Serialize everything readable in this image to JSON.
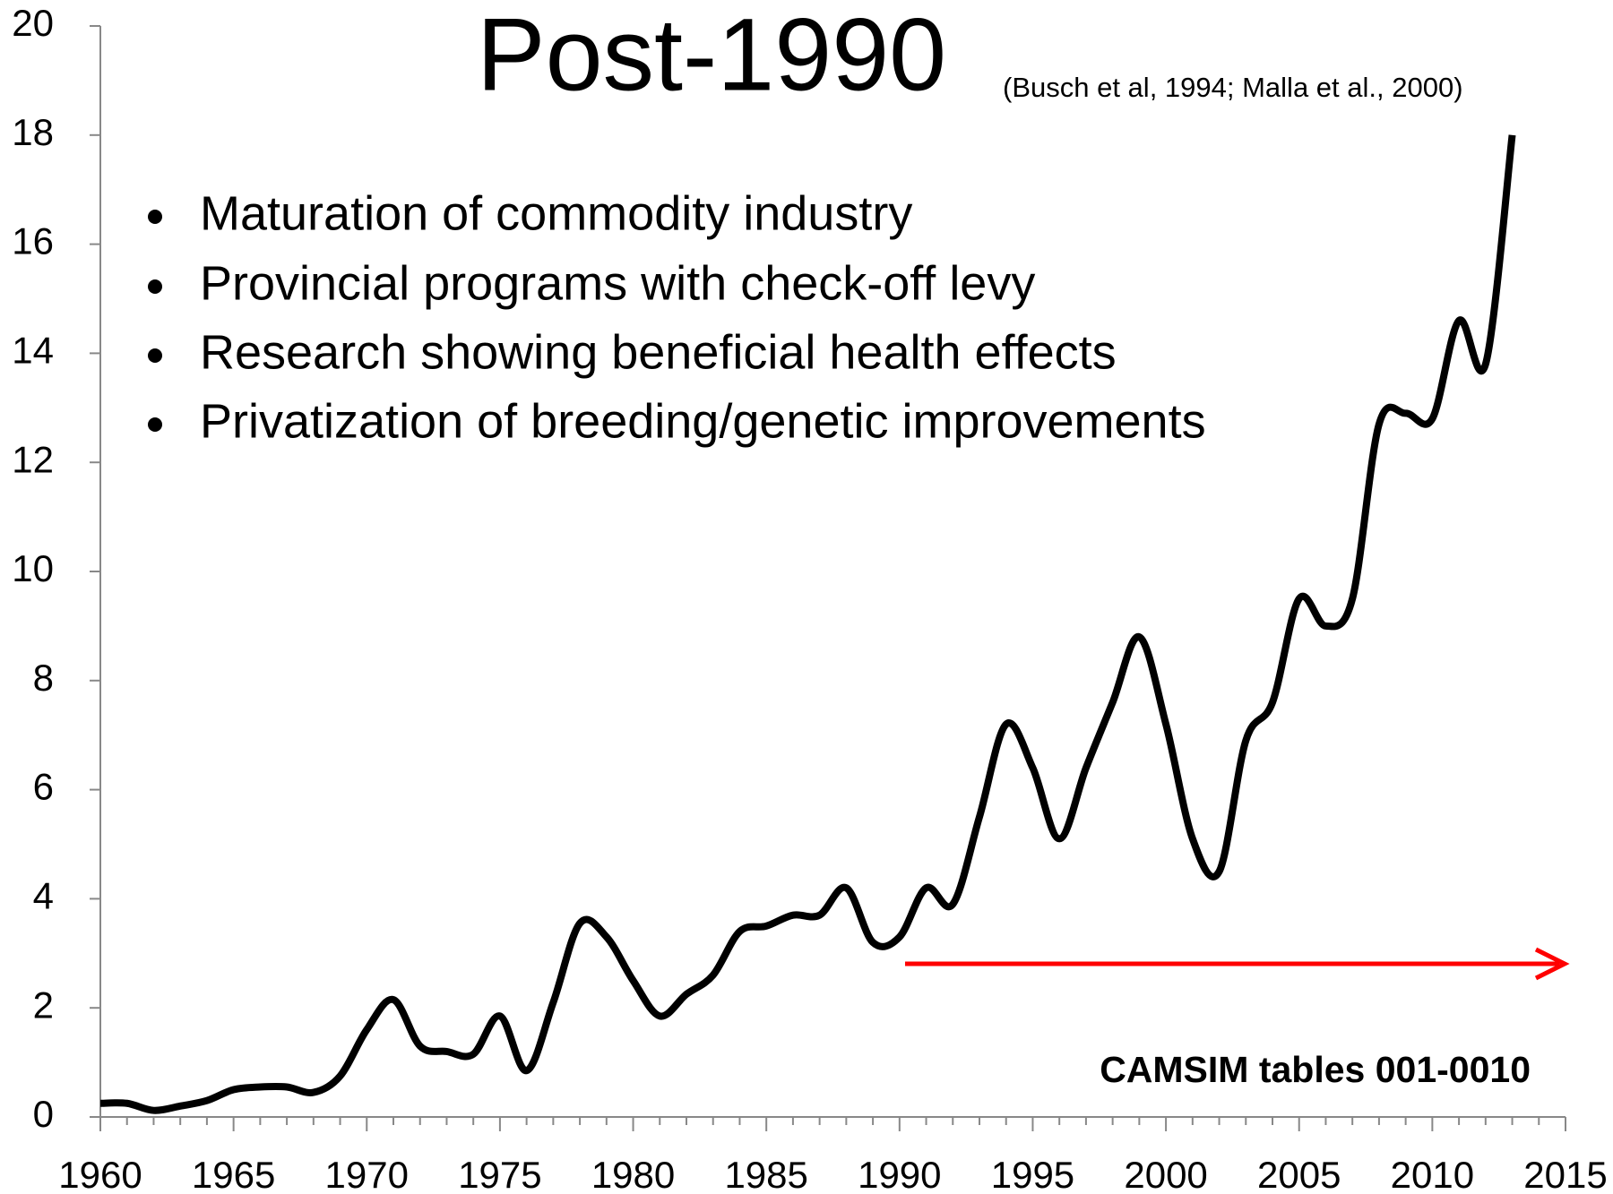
{
  "chart_data": {
    "type": "line",
    "title": "Post-1990",
    "subtitle": "(Busch et al, 1994; Malla et al., 2000)",
    "annotations": [
      "Maturation of commodity industry",
      "Provincial programs with check-off levy",
      "Research showing beneficial health effects",
      "Privatization of breeding/genetic improvements"
    ],
    "source": "CAMSIM tables 001-0010",
    "x": [
      1960,
      1961,
      1962,
      1963,
      1964,
      1965,
      1966,
      1967,
      1968,
      1969,
      1970,
      1971,
      1972,
      1973,
      1974,
      1975,
      1976,
      1977,
      1978,
      1979,
      1980,
      1981,
      1982,
      1983,
      1984,
      1985,
      1986,
      1987,
      1988,
      1989,
      1990,
      1991,
      1992,
      1993,
      1994,
      1995,
      1996,
      1997,
      1998,
      1999,
      2000,
      2001,
      2002,
      2003,
      2004,
      2005,
      2006,
      2007,
      2008,
      2009,
      2010,
      2011,
      2012,
      2013
    ],
    "series": [
      {
        "color": "#000000",
        "values": [
          0.25,
          0.25,
          0.12,
          0.2,
          0.3,
          0.5,
          0.55,
          0.55,
          0.45,
          0.75,
          1.6,
          2.15,
          1.3,
          1.2,
          1.15,
          1.85,
          0.85,
          2.1,
          3.55,
          3.3,
          2.5,
          1.85,
          2.25,
          2.6,
          3.4,
          3.5,
          3.7,
          3.7,
          4.2,
          3.2,
          3.3,
          4.2,
          3.9,
          5.5,
          7.2,
          6.4,
          5.1,
          6.4,
          7.6,
          8.8,
          7.2,
          5.1,
          4.5,
          6.9,
          7.6,
          9.5,
          9.0,
          9.5,
          12.7,
          12.9,
          12.8,
          14.6,
          13.8,
          18.0
        ]
      }
    ],
    "xlim": [
      1960,
      2015
    ],
    "xticks": [
      1960,
      1965,
      1970,
      1975,
      1980,
      1985,
      1990,
      1995,
      2000,
      2005,
      2010,
      2015
    ],
    "ylim": [
      0,
      20
    ],
    "yticks": [
      0,
      2,
      4,
      6,
      8,
      10,
      12,
      14,
      16,
      18,
      20
    ],
    "grid": false
  }
}
